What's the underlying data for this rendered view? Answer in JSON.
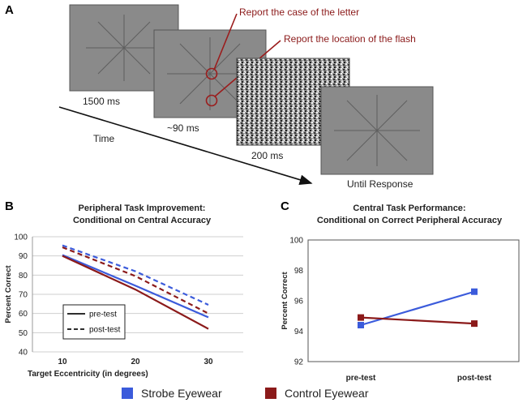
{
  "panel_labels": {
    "a": "A",
    "b": "B",
    "c": "C"
  },
  "panel_a": {
    "screen_times": [
      "1500 ms",
      "~90 ms",
      "200 ms",
      "Until Response"
    ],
    "time_label": "Time",
    "annotations": {
      "letter_case": "Report the case of the letter",
      "flash_location": "Report the location of the flash"
    }
  },
  "colors": {
    "strobe": "#3b5bdb",
    "control": "#8b1a1a",
    "annotation": "#8b1a1a"
  },
  "legend": {
    "strobe": "Strobe Eyewear",
    "control": "Control Eyewear"
  },
  "chart_data": [
    {
      "type": "line",
      "title_line1": "Peripheral Task Improvement:",
      "title_line2": "Conditional on Central Accuracy",
      "xlabel": "Target Eccentricity (in degrees)",
      "ylabel": "Percent Correct",
      "x": [
        10,
        20,
        30
      ],
      "xticks": [
        "10",
        "20",
        "30"
      ],
      "ylim": [
        40,
        100
      ],
      "yticks": [
        40,
        50,
        60,
        70,
        80,
        90,
        100
      ],
      "grid": true,
      "legend_box": {
        "pre": "pre-test",
        "post": "post-test"
      },
      "series": [
        {
          "name": "Strobe pre-test",
          "group": "strobe",
          "style": "solid",
          "values": [
            90.5,
            74.5,
            58
          ]
        },
        {
          "name": "Control pre-test",
          "group": "control",
          "style": "solid",
          "values": [
            90,
            72.5,
            52
          ]
        },
        {
          "name": "Strobe post-test",
          "group": "strobe",
          "style": "dashed",
          "values": [
            95.5,
            82,
            64.5
          ]
        },
        {
          "name": "Control post-test",
          "group": "control",
          "style": "dashed",
          "values": [
            94.5,
            79.5,
            60
          ]
        }
      ]
    },
    {
      "type": "line",
      "title_line1": "Central Task Performance:",
      "title_line2": "Conditional on Correct Peripheral Accuracy",
      "xlabel": "",
      "ylabel": "Percent Correct",
      "categories": [
        "pre-test",
        "post-test"
      ],
      "ylim": [
        92,
        100
      ],
      "yticks": [
        92,
        94,
        96,
        98,
        100
      ],
      "grid": false,
      "series": [
        {
          "name": "Strobe Eyewear",
          "group": "strobe",
          "values": [
            94.4,
            96.6
          ]
        },
        {
          "name": "Control Eyewear",
          "group": "control",
          "values": [
            94.9,
            94.5
          ]
        }
      ]
    }
  ]
}
